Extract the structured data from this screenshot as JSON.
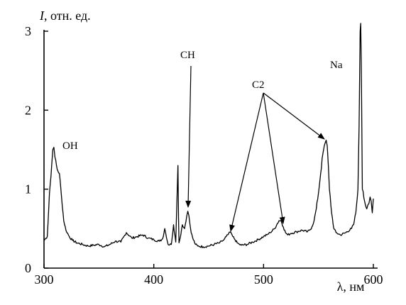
{
  "chart_data": {
    "type": "line",
    "ylabel_italic": "I",
    "ylabel": ", отн. ед.",
    "xlabel": "λ, нм",
    "xlim": [
      300,
      600
    ],
    "ylim": [
      0,
      3
    ],
    "xticks": [
      300,
      400,
      500,
      600
    ],
    "yticks": [
      0,
      1,
      2,
      3
    ],
    "grid": false,
    "series": [
      {
        "x": [
          300,
          303,
          305,
          307,
          308,
          309,
          310,
          312,
          314,
          316,
          318,
          320,
          323,
          326,
          330,
          335,
          340,
          345,
          350,
          355,
          360,
          365,
          370,
          375,
          380,
          385,
          390,
          395,
          400,
          405,
          408,
          410,
          413,
          416,
          418,
          420,
          421,
          422,
          422.5,
          423,
          424,
          426,
          428,
          430,
          431,
          432,
          433,
          434,
          436,
          438,
          440,
          445,
          450,
          455,
          460,
          462,
          464,
          466,
          468,
          470,
          471,
          472,
          474,
          476,
          478,
          480,
          485,
          490,
          495,
          500,
          503,
          506,
          510,
          512,
          514,
          516,
          518,
          520,
          522,
          525,
          530,
          535,
          540,
          542,
          544,
          546,
          548,
          550,
          552,
          554,
          556,
          557,
          558,
          559,
          560,
          562,
          564,
          566,
          570,
          575,
          580,
          582,
          584,
          586,
          587,
          588,
          588.5,
          589,
          590,
          592,
          594,
          595,
          596,
          597,
          598,
          599,
          600
        ],
        "y": [
          0.35,
          0.4,
          0.95,
          1.3,
          1.5,
          1.53,
          1.4,
          1.25,
          1.2,
          0.9,
          0.6,
          0.48,
          0.4,
          0.35,
          0.32,
          0.3,
          0.28,
          0.29,
          0.3,
          0.27,
          0.3,
          0.34,
          0.33,
          0.45,
          0.38,
          0.4,
          0.42,
          0.38,
          0.36,
          0.34,
          0.37,
          0.5,
          0.3,
          0.3,
          0.55,
          0.33,
          0.8,
          1.3,
          0.65,
          0.32,
          0.38,
          0.55,
          0.5,
          0.66,
          0.72,
          0.66,
          0.55,
          0.45,
          0.36,
          0.3,
          0.28,
          0.27,
          0.28,
          0.3,
          0.32,
          0.34,
          0.36,
          0.4,
          0.43,
          0.46,
          0.43,
          0.4,
          0.36,
          0.32,
          0.3,
          0.29,
          0.3,
          0.33,
          0.36,
          0.4,
          0.42,
          0.45,
          0.5,
          0.55,
          0.6,
          0.6,
          0.52,
          0.45,
          0.42,
          0.44,
          0.46,
          0.48,
          0.46,
          0.48,
          0.52,
          0.6,
          0.75,
          0.95,
          1.2,
          1.45,
          1.58,
          1.62,
          1.55,
          1.3,
          1.0,
          0.7,
          0.5,
          0.45,
          0.42,
          0.45,
          0.5,
          0.55,
          0.7,
          1.0,
          1.8,
          3.0,
          3.1,
          2.6,
          1.0,
          0.85,
          0.75,
          0.8,
          0.82,
          0.9,
          0.85,
          0.7,
          0.88
        ]
      }
    ],
    "annotations": [
      {
        "label": "OH",
        "target": [
          309,
          1.53
        ]
      },
      {
        "label": "CH",
        "target": [
          431,
          0.72
        ]
      },
      {
        "label": "C2",
        "targets": [
          [
            469,
            0.46
          ],
          [
            516,
            0.6
          ],
          [
            557,
            1.62
          ]
        ]
      },
      {
        "label": "Na",
        "target": [
          588.5,
          3.0
        ]
      }
    ]
  }
}
